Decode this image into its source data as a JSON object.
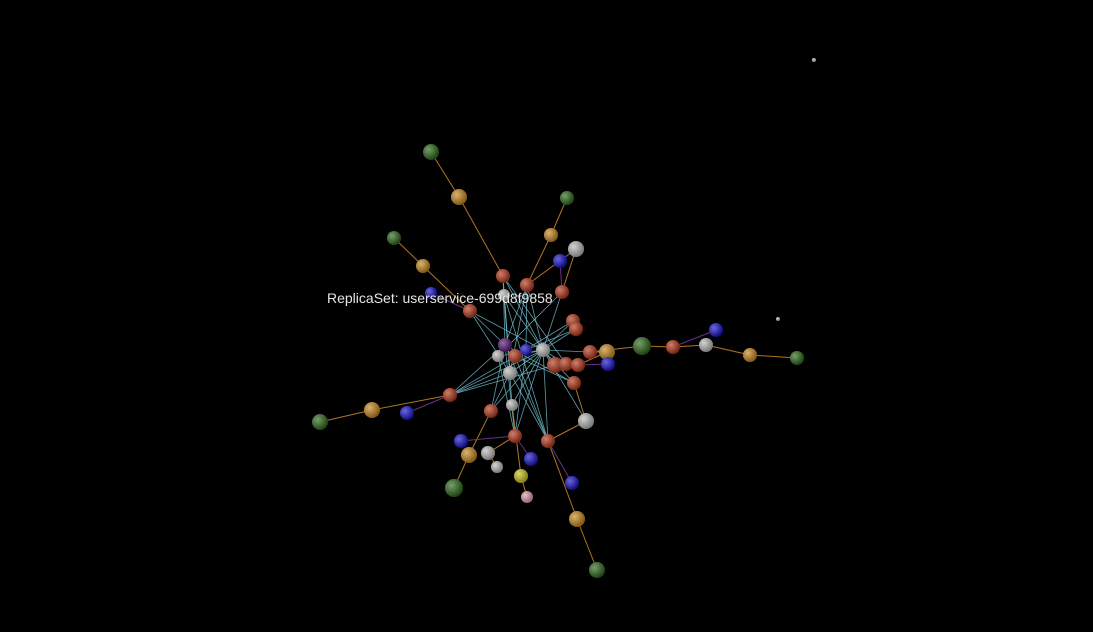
{
  "tooltip": {
    "text": "ReplicaSet: userservice-699d8f9858"
  },
  "colors": {
    "background": "#000000",
    "edge_service": "#6fb8c8",
    "edge_owner": "#d08a2a",
    "edge_other": "#7a3aa0",
    "node_red": "#b83a1e",
    "node_orange": "#c88a22",
    "node_green": "#2f6a1c",
    "node_white": "#bcbcbc",
    "node_blue": "#1a14c8",
    "node_purple": "#5a1a7a",
    "node_yellow": "#c8c41e",
    "node_pink": "#d8a0b0"
  }
}
